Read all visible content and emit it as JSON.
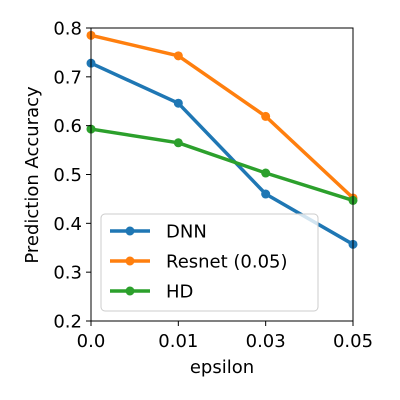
{
  "chart_data": {
    "type": "line",
    "title": "",
    "xlabel": "epsilon",
    "ylabel": "Prediction Accuracy",
    "categories": [
      "0.0",
      "0.01",
      "0.03",
      "0.05"
    ],
    "ylim": [
      0.2,
      0.8
    ],
    "yticks": [
      "0.2",
      "0.3",
      "0.4",
      "0.5",
      "0.6",
      "0.7",
      "0.8"
    ],
    "grid": false,
    "legend_position": "lower-left",
    "series": [
      {
        "name": "DNN",
        "color": "#1f77b4",
        "values": [
          0.728,
          0.646,
          0.46,
          0.357
        ]
      },
      {
        "name": "Resnet (0.05)",
        "color": "#ff7f0e",
        "values": [
          0.785,
          0.743,
          0.619,
          0.452
        ]
      },
      {
        "name": "HD",
        "color": "#2ca02c",
        "values": [
          0.593,
          0.565,
          0.503,
          0.447
        ]
      }
    ]
  }
}
